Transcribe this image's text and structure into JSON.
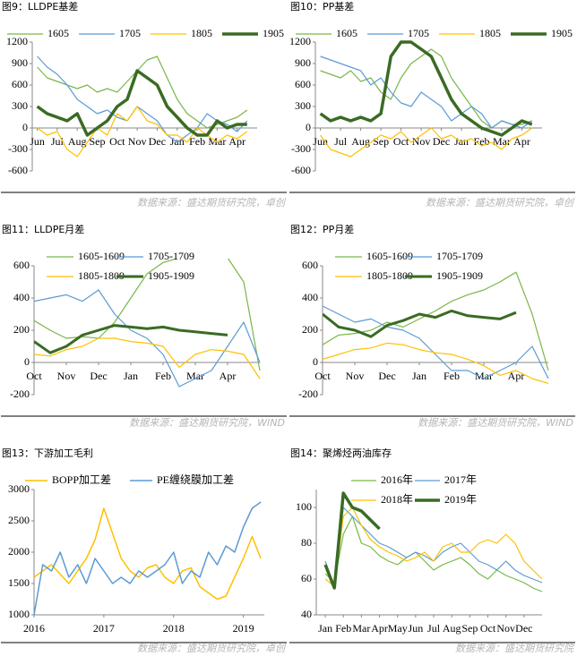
{
  "chart_data": [
    {
      "type": "line",
      "title": "图9：LLDPE基差",
      "source": "数据来源：盛达期货研究院，卓创",
      "x": [
        0,
        0.5,
        1,
        1.5,
        2,
        2.5,
        3,
        3.5,
        4,
        4.5,
        5,
        5.5,
        6,
        6.5,
        7,
        7.5,
        8,
        8.5,
        9,
        9.5,
        10,
        10.5
      ],
      "xlim": [
        -0.25,
        11
      ],
      "xticks": [
        {
          "value": 0,
          "label": "Jun"
        },
        {
          "value": 1,
          "label": "Jul"
        },
        {
          "value": 2,
          "label": "Aug"
        },
        {
          "value": 3,
          "label": "Sep"
        },
        {
          "value": 4,
          "label": "Oct"
        },
        {
          "value": 5,
          "label": "Nov"
        },
        {
          "value": 6,
          "label": "Dec"
        },
        {
          "value": 7,
          "label": "Jan"
        },
        {
          "value": 8,
          "label": "Feb"
        },
        {
          "value": 9,
          "label": "Mar"
        },
        {
          "value": 10,
          "label": "Apr"
        }
      ],
      "ylim": [
        -600,
        1200
      ],
      "yticks": [
        -600,
        -300,
        0,
        300,
        600,
        900,
        1200
      ],
      "series": [
        {
          "name": "1605",
          "color": "#7ab648",
          "linewidth": 1.2,
          "values": [
            850,
            700,
            650,
            600,
            550,
            600,
            500,
            550,
            500,
            650,
            800,
            950,
            1000,
            700,
            400,
            200,
            100,
            0,
            50,
            100,
            150,
            250
          ]
        },
        {
          "name": "1705",
          "color": "#5b9bd5",
          "linewidth": 1.2,
          "values": [
            1000,
            850,
            750,
            600,
            400,
            300,
            200,
            250,
            150,
            100,
            300,
            200,
            100,
            -100,
            -200,
            -100,
            0,
            200,
            100,
            50,
            -50,
            100
          ]
        },
        {
          "name": "1805",
          "color": "#ffc000",
          "linewidth": 1.2,
          "values": [
            0,
            -100,
            -50,
            -300,
            -400,
            -200,
            0,
            -100,
            200,
            100,
            300,
            100,
            50,
            -100,
            -100,
            -200,
            0,
            -100,
            -200,
            -100,
            -150,
            -50
          ]
        },
        {
          "name": "1905",
          "color": "#3a6b24",
          "linewidth": 3.5,
          "values": [
            300,
            200,
            150,
            100,
            200,
            -100,
            0,
            100,
            300,
            400,
            800,
            700,
            600,
            300,
            150,
            0,
            -100,
            -100,
            100,
            0,
            50,
            50
          ]
        }
      ]
    },
    {
      "type": "line",
      "title": "图10：PP基差",
      "source": "数据来源：盛达期货研究院，卓创",
      "x": [
        0,
        0.5,
        1,
        1.5,
        2,
        2.5,
        3,
        3.5,
        4,
        4.5,
        5,
        5.5,
        6,
        6.5,
        7,
        7.5,
        8,
        8.5,
        9,
        9.5,
        10,
        10.5
      ],
      "xlim": [
        -0.25,
        11
      ],
      "xticks": [
        {
          "value": 0,
          "label": "Jun"
        },
        {
          "value": 1,
          "label": "Jul"
        },
        {
          "value": 2,
          "label": "Aug"
        },
        {
          "value": 3,
          "label": "Sep"
        },
        {
          "value": 4,
          "label": "Oct"
        },
        {
          "value": 5,
          "label": "Nov"
        },
        {
          "value": 6,
          "label": "Dec"
        },
        {
          "value": 7,
          "label": "Jan"
        },
        {
          "value": 8,
          "label": "Feb"
        },
        {
          "value": 9,
          "label": "Mar"
        },
        {
          "value": 10,
          "label": "Apr"
        }
      ],
      "ylim": [
        -600,
        1200
      ],
      "yticks": [
        -600,
        -300,
        0,
        300,
        600,
        900,
        1200
      ],
      "series": [
        {
          "name": "1605",
          "color": "#7ab648",
          "linewidth": 1.2,
          "values": [
            800,
            750,
            700,
            800,
            650,
            700,
            500,
            400,
            700,
            900,
            1000,
            1100,
            1000,
            700,
            500,
            300,
            100,
            0,
            100,
            50,
            50,
            100
          ]
        },
        {
          "name": "1705",
          "color": "#5b9bd5",
          "linewidth": 1.2,
          "values": [
            1000,
            950,
            900,
            850,
            800,
            600,
            700,
            500,
            350,
            300,
            500,
            400,
            300,
            100,
            200,
            300,
            200,
            0,
            100,
            50,
            0,
            100
          ]
        },
        {
          "name": "1805",
          "color": "#ffc000",
          "linewidth": 1.2,
          "values": [
            -100,
            -300,
            -350,
            -400,
            -300,
            -200,
            -100,
            -150,
            -50,
            -200,
            -100,
            0,
            -150,
            -100,
            -200,
            -150,
            -250,
            -200,
            -300,
            -150,
            -100,
            0
          ]
        },
        {
          "name": "1905",
          "color": "#3a6b24",
          "linewidth": 3.5,
          "values": [
            200,
            100,
            150,
            100,
            150,
            100,
            200,
            1000,
            1200,
            1200,
            1100,
            1000,
            700,
            400,
            200,
            100,
            0,
            -50,
            -100,
            0,
            100,
            50
          ]
        }
      ]
    },
    {
      "type": "line",
      "title": "图11：LLDPE月差",
      "source": "数据来源：盛达期货研究院，WIND",
      "x": [
        0,
        0.5,
        1,
        1.5,
        2,
        2.5,
        3,
        3.5,
        4,
        4.5,
        5,
        5.5,
        6,
        6.5,
        7
      ],
      "xlim": [
        0,
        7
      ],
      "xticks": [
        {
          "value": 0,
          "label": "Oct"
        },
        {
          "value": 1,
          "label": "Nov"
        },
        {
          "value": 2,
          "label": "Dec"
        },
        {
          "value": 3,
          "label": "Jan"
        },
        {
          "value": 4,
          "label": "Feb"
        },
        {
          "value": 5,
          "label": "Mar"
        },
        {
          "value": 6,
          "label": "Apr"
        }
      ],
      "ylim": [
        -200,
        600
      ],
      "yticks": [
        -200,
        0,
        200,
        400,
        600
      ],
      "series": [
        {
          "name": "1605-1609",
          "color": "#7ab648",
          "linewidth": 1.2,
          "values": [
            260,
            200,
            150,
            160,
            150,
            250,
            400,
            550,
            620,
            650,
            680,
            700,
            650,
            500,
            -50
          ]
        },
        {
          "name": "1705-1709",
          "color": "#5b9bd5",
          "linewidth": 1.2,
          "values": [
            380,
            400,
            420,
            380,
            450,
            300,
            200,
            150,
            50,
            -150,
            -100,
            -50,
            100,
            250,
            0
          ]
        },
        {
          "name": "1805-1809",
          "color": "#ffc000",
          "linewidth": 1.2,
          "values": [
            50,
            40,
            80,
            100,
            150,
            150,
            130,
            120,
            100,
            -30,
            50,
            80,
            70,
            50,
            -100
          ]
        },
        {
          "name": "1905-1909",
          "color": "#3a6b24",
          "linewidth": 3,
          "values": [
            130,
            60,
            100,
            170,
            200,
            230,
            220,
            210,
            220,
            200,
            190,
            180,
            170,
            null,
            null
          ]
        }
      ]
    },
    {
      "type": "line",
      "title": "图12：PP月差",
      "source": "数据来源：盛达期货研究院，WIND",
      "x": [
        0,
        0.5,
        1,
        1.5,
        2,
        2.5,
        3,
        3.5,
        4,
        4.5,
        5,
        5.5,
        6,
        6.5,
        7
      ],
      "xlim": [
        0,
        7
      ],
      "xticks": [
        {
          "value": 0,
          "label": "Oct"
        },
        {
          "value": 1,
          "label": "Nov"
        },
        {
          "value": 2,
          "label": "Dec"
        },
        {
          "value": 3,
          "label": "Jan"
        },
        {
          "value": 4,
          "label": "Feb"
        },
        {
          "value": 5,
          "label": "Mar"
        },
        {
          "value": 6,
          "label": "Apr"
        }
      ],
      "ylim": [
        -200,
        600
      ],
      "yticks": [
        -200,
        0,
        200,
        400,
        600
      ],
      "series": [
        {
          "name": "1605-1609",
          "color": "#7ab648",
          "linewidth": 1.2,
          "values": [
            110,
            170,
            180,
            200,
            250,
            220,
            270,
            320,
            380,
            420,
            450,
            500,
            560,
            300,
            -50
          ]
        },
        {
          "name": "1705-1709",
          "color": "#5b9bd5",
          "linewidth": 1.2,
          "values": [
            350,
            300,
            250,
            270,
            220,
            200,
            150,
            50,
            -50,
            -50,
            -100,
            -50,
            0,
            100,
            -100
          ]
        },
        {
          "name": "1805-1809",
          "color": "#ffc000",
          "linewidth": 1.2,
          "values": [
            20,
            50,
            80,
            90,
            120,
            110,
            80,
            60,
            50,
            20,
            -20,
            -80,
            -50,
            -100,
            -130
          ]
        },
        {
          "name": "1905-1909",
          "color": "#3a6b24",
          "linewidth": 3,
          "values": [
            300,
            220,
            200,
            160,
            230,
            260,
            300,
            280,
            320,
            290,
            280,
            270,
            310,
            null,
            null
          ]
        }
      ]
    },
    {
      "type": "line",
      "title": "图13：下游加工毛利",
      "source": "数据来源：盛达期货研究院，卓创",
      "x": [
        2016,
        2016.125,
        2016.25,
        2016.375,
        2016.5,
        2016.625,
        2016.75,
        2016.875,
        2017,
        2017.125,
        2017.25,
        2017.375,
        2017.5,
        2017.625,
        2017.75,
        2017.875,
        2018,
        2018.125,
        2018.25,
        2018.375,
        2018.5,
        2018.625,
        2018.75,
        2018.875,
        2019,
        2019.125,
        2019.25
      ],
      "xlim": [
        2016,
        2019.3
      ],
      "xticks": [
        2016,
        2017,
        2018,
        2019
      ],
      "ylim": [
        1000,
        3000
      ],
      "yticks": [
        1000,
        1500,
        2000,
        2500,
        3000
      ],
      "series": [
        {
          "name": "BOPP加工差",
          "color": "#ffc000",
          "linewidth": 1.5,
          "values": [
            1600,
            1700,
            1800,
            1650,
            1500,
            1700,
            1900,
            2200,
            2700,
            2300,
            1900,
            1700,
            1600,
            1750,
            1800,
            1600,
            1500,
            1700,
            1750,
            1450,
            1350,
            1250,
            1300,
            1600,
            1900,
            2250,
            1900
          ]
        },
        {
          "name": "PE缠绕膜加工差",
          "color": "#5b9bd5",
          "linewidth": 1.5,
          "values": [
            1000,
            1800,
            1700,
            2000,
            1600,
            1800,
            1500,
            1900,
            1700,
            1500,
            1600,
            1500,
            1700,
            1600,
            1700,
            1800,
            2000,
            1500,
            1700,
            1600,
            2000,
            1800,
            2100,
            2000,
            2400,
            2700,
            2800
          ]
        }
      ]
    },
    {
      "type": "line",
      "title": "图14：聚烯烃两油库存",
      "source": "数据来源：盛达期货研究院",
      "x": [
        0,
        0.5,
        1,
        1.5,
        2,
        2.5,
        3,
        3.5,
        4,
        4.5,
        5,
        5.5,
        6,
        6.5,
        7,
        7.5,
        8,
        8.5,
        9,
        9.5,
        10,
        10.5,
        11,
        11.5,
        12
      ],
      "xlim": [
        -0.5,
        12
      ],
      "xticks": [
        {
          "value": 0,
          "label": "Jan"
        },
        {
          "value": 1,
          "label": "Feb"
        },
        {
          "value": 2,
          "label": "Mar"
        },
        {
          "value": 3,
          "label": "Apr"
        },
        {
          "value": 4,
          "label": "May"
        },
        {
          "value": 5,
          "label": "Jun"
        },
        {
          "value": 6,
          "label": "Jul"
        },
        {
          "value": 7,
          "label": "Aug"
        },
        {
          "value": 8,
          "label": "Sep"
        },
        {
          "value": 9,
          "label": "Oct"
        },
        {
          "value": 10,
          "label": "Nov"
        },
        {
          "value": 11,
          "label": "Dec"
        }
      ],
      "ylim": [
        40,
        110
      ],
      "yticks": [
        40,
        60,
        80,
        100
      ],
      "series": [
        {
          "name": "2016年",
          "color": "#7ab648",
          "linewidth": 1.2,
          "values": [
            63,
            58,
            85,
            95,
            80,
            78,
            73,
            70,
            68,
            72,
            75,
            70,
            65,
            68,
            70,
            72,
            68,
            63,
            60,
            65,
            62,
            60,
            58,
            55,
            53
          ]
        },
        {
          "name": "2017年",
          "color": "#5b9bd5",
          "linewidth": 1.2,
          "values": [
            70,
            55,
            100,
            95,
            90,
            85,
            80,
            78,
            75,
            72,
            75,
            73,
            70,
            75,
            78,
            80,
            75,
            70,
            68,
            65,
            70,
            65,
            62,
            60,
            58
          ]
        },
        {
          "name": "2018年",
          "color": "#ffc000",
          "linewidth": 1.2,
          "values": [
            60,
            56,
            95,
            100,
            90,
            82,
            78,
            75,
            73,
            70,
            72,
            75,
            70,
            78,
            80,
            75,
            75,
            80,
            82,
            80,
            85,
            80,
            70,
            65,
            60
          ]
        },
        {
          "name": "2019年",
          "color": "#3a6b24",
          "linewidth": 3.5,
          "values": [
            68,
            55,
            108,
            100,
            98,
            93,
            88,
            null,
            null,
            null,
            null,
            null,
            null,
            null,
            null,
            null,
            null,
            null,
            null,
            null,
            null,
            null,
            null,
            null,
            null
          ]
        }
      ]
    }
  ]
}
